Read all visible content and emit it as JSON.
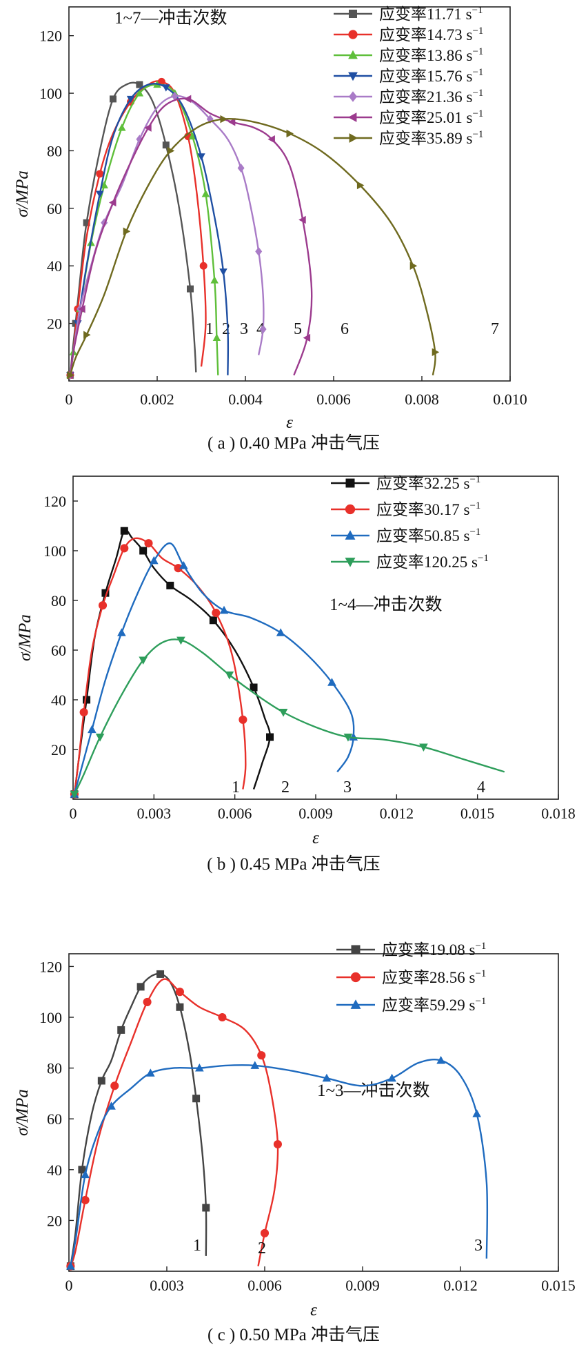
{
  "chart_data": [
    {
      "type": "line",
      "caption": "( a ) 0.40 MPa 冲击气压",
      "xlabel": "ε",
      "ylabel": "σ/MPa",
      "xlim": [
        0,
        0.01
      ],
      "ylim": [
        0,
        130
      ],
      "xticks": [
        "0",
        "0.002",
        "0.004",
        "0.006",
        "0.008",
        "0.010"
      ],
      "yticks": [
        "20",
        "40",
        "60",
        "80",
        "100",
        "120"
      ],
      "grid": false,
      "legend_position": "top-right",
      "note": "1~7—冲击次数",
      "series": [
        {
          "name": "应变率11.71 s",
          "label": "1",
          "color": "#555555",
          "marker": "square",
          "x": [
            3e-05,
            8e-05,
            0.00015,
            0.00025,
            0.0004,
            0.0007,
            0.001,
            0.0013,
            0.0016,
            0.0019,
            0.0022,
            0.0025,
            0.00275,
            0.00285,
            0.00288
          ],
          "y": [
            2,
            10,
            20,
            35,
            55,
            80,
            98,
            103,
            103,
            97,
            82,
            60,
            32,
            12,
            3
          ]
        },
        {
          "name": "应变率14.73 s",
          "label": "2",
          "color": "#e8302a",
          "marker": "circle",
          "x": [
            3e-05,
            0.0001,
            0.0002,
            0.0004,
            0.0007,
            0.001,
            0.0014,
            0.0018,
            0.0021,
            0.0024,
            0.0027,
            0.0029,
            0.00305,
            0.0031,
            0.003
          ],
          "y": [
            2,
            10,
            25,
            50,
            72,
            86,
            97,
            103,
            104,
            100,
            85,
            65,
            40,
            20,
            5
          ]
        },
        {
          "name": "应变率13.86 s",
          "label": "3",
          "color": "#5fbf3a",
          "marker": "triangle-up",
          "x": [
            3e-05,
            0.0001,
            0.00025,
            0.0005,
            0.0008,
            0.0012,
            0.0016,
            0.002,
            0.0024,
            0.0028,
            0.0031,
            0.0033,
            0.00335,
            0.00338
          ],
          "y": [
            2,
            10,
            25,
            48,
            68,
            88,
            100,
            103,
            100,
            85,
            65,
            35,
            15,
            2
          ]
        },
        {
          "name": "应变率15.76 s",
          "label": "4",
          "color": "#1f4fa3",
          "marker": "triangle-down",
          "x": [
            3e-05,
            0.0001,
            0.0002,
            0.0004,
            0.0007,
            0.001,
            0.0014,
            0.0018,
            0.0022,
            0.0026,
            0.003,
            0.0033,
            0.0035,
            0.0036,
            0.0036
          ],
          "y": [
            2,
            10,
            20,
            40,
            65,
            85,
            98,
            103,
            102,
            95,
            78,
            57,
            38,
            18,
            2
          ]
        },
        {
          "name": "应变率21.36 s",
          "label": "5",
          "color": "#a97bc7",
          "marker": "diamond",
          "x": [
            3e-05,
            0.0001,
            0.00025,
            0.0005,
            0.0008,
            0.0012,
            0.0016,
            0.002,
            0.0024,
            0.0028,
            0.0032,
            0.0036,
            0.0039,
            0.0041,
            0.0043,
            0.0044,
            0.0044,
            0.0043
          ],
          "y": [
            2,
            10,
            25,
            40,
            55,
            68,
            84,
            95,
            99,
            97,
            91,
            84,
            74,
            62,
            45,
            30,
            18,
            9
          ]
        },
        {
          "name": "应变率25.01 s",
          "label": "6",
          "color": "#9c3b8e",
          "marker": "triangle-left",
          "x": [
            3e-05,
            0.0001,
            0.0003,
            0.0006,
            0.001,
            0.0014,
            0.0018,
            0.0022,
            0.0027,
            0.0032,
            0.0037,
            0.0042,
            0.0046,
            0.005,
            0.0053,
            0.0055,
            0.0054,
            0.0051
          ],
          "y": [
            2,
            10,
            25,
            45,
            62,
            76,
            88,
            96,
            98,
            93,
            90,
            88,
            84,
            75,
            56,
            32,
            15,
            2
          ]
        },
        {
          "name": "应变率35.89 s",
          "label": "7",
          "color": "#6f6a1f",
          "marker": "triangle-right",
          "x": [
            3e-05,
            0.00015,
            0.0004,
            0.0008,
            0.0013,
            0.0018,
            0.0023,
            0.0029,
            0.0035,
            0.0042,
            0.005,
            0.0058,
            0.0066,
            0.0073,
            0.0078,
            0.0081,
            0.0083,
            0.00825
          ],
          "y": [
            2,
            8,
            16,
            30,
            52,
            68,
            80,
            88,
            91,
            90,
            86,
            79,
            68,
            55,
            40,
            25,
            10,
            2
          ]
        }
      ]
    },
    {
      "type": "line",
      "caption": "( b ) 0.45 MPa 冲击气压",
      "xlabel": "ε",
      "ylabel": "σ/MPa",
      "xlim": [
        0,
        0.018
      ],
      "ylim": [
        0,
        130
      ],
      "xticks": [
        "0",
        "0.003",
        "0.006",
        "0.009",
        "0.012",
        "0.015",
        "0.018"
      ],
      "yticks": [
        "20",
        "40",
        "60",
        "80",
        "100",
        "120"
      ],
      "grid": false,
      "legend_position": "top-right",
      "note": "1~4—冲击次数",
      "series": [
        {
          "name": "应变率32.25 s",
          "label": "1",
          "color": "#111111",
          "marker": "square",
          "x": [
            5e-05,
            0.0002,
            0.0005,
            0.0008,
            0.0012,
            0.0016,
            0.0019,
            0.0022,
            0.0026,
            0.003,
            0.0036,
            0.0044,
            0.0052,
            0.006,
            0.0067,
            0.0071,
            0.0073,
            0.007,
            0.0067
          ],
          "y": [
            2,
            15,
            40,
            65,
            83,
            97,
            108,
            105,
            100,
            93,
            86,
            80,
            72,
            60,
            45,
            33,
            25,
            14,
            4
          ]
        },
        {
          "name": "应变率30.17 s",
          "label": "2",
          "color": "#e8302a",
          "marker": "circle",
          "x": [
            5e-05,
            0.0002,
            0.0004,
            0.0007,
            0.0011,
            0.0015,
            0.0019,
            0.0023,
            0.0028,
            0.0033,
            0.0039,
            0.0046,
            0.0053,
            0.0059,
            0.0063,
            0.0064,
            0.0063
          ],
          "y": [
            2,
            15,
            35,
            60,
            78,
            90,
            101,
            105,
            103,
            97,
            93,
            86,
            75,
            58,
            32,
            14,
            4
          ]
        },
        {
          "name": "应变率50.85 s",
          "label": "3",
          "color": "#1f6bbf",
          "marker": "triangle-up",
          "x": [
            5e-05,
            0.0003,
            0.0007,
            0.0012,
            0.0018,
            0.0024,
            0.003,
            0.0036,
            0.0041,
            0.0048,
            0.0056,
            0.0066,
            0.0077,
            0.0087,
            0.0096,
            0.0103,
            0.0104,
            0.0102,
            0.0098
          ],
          "y": [
            2,
            12,
            28,
            48,
            67,
            83,
            96,
            103,
            94,
            83,
            76,
            73,
            67,
            58,
            47,
            35,
            25,
            17,
            11
          ]
        },
        {
          "name": "应变率120.25 s",
          "label": "4",
          "color": "#2e9e5b",
          "marker": "triangle-down",
          "x": [
            5e-05,
            0.0004,
            0.001,
            0.0018,
            0.0026,
            0.0033,
            0.004,
            0.0048,
            0.0058,
            0.0068,
            0.0078,
            0.009,
            0.0102,
            0.0115,
            0.013,
            0.0145,
            0.016
          ],
          "y": [
            2,
            10,
            25,
            42,
            56,
            63,
            64,
            59,
            50,
            42,
            35,
            29,
            25,
            24,
            21,
            16,
            11
          ]
        }
      ]
    },
    {
      "type": "line",
      "caption": "( c ) 0.50 MPa 冲击气压",
      "xlabel": "ε",
      "ylabel": "σ/MPa",
      "xlim": [
        0,
        0.015
      ],
      "ylim": [
        0,
        125
      ],
      "xticks": [
        "0",
        "0.003",
        "0.006",
        "0.009",
        "0.012",
        "0.015"
      ],
      "yticks": [
        "20",
        "40",
        "60",
        "80",
        "100",
        "120"
      ],
      "grid": false,
      "legend_position": "top-right",
      "note": "1~3—冲击次数",
      "series": [
        {
          "name": "应变率19.08 s",
          "label": "1",
          "color": "#444444",
          "marker": "square",
          "x": [
            5e-05,
            0.0002,
            0.0004,
            0.0007,
            0.001,
            0.0013,
            0.0016,
            0.0019,
            0.0022,
            0.0025,
            0.0028,
            0.0031,
            0.0034,
            0.0037,
            0.0039,
            0.0041,
            0.0042,
            0.0042
          ],
          "y": [
            2,
            15,
            40,
            62,
            75,
            83,
            95,
            104,
            112,
            116,
            117,
            114,
            104,
            86,
            68,
            45,
            25,
            6
          ]
        },
        {
          "name": "应变率28.56 s",
          "label": "2",
          "color": "#e8302a",
          "marker": "circle",
          "x": [
            5e-05,
            0.0002,
            0.0005,
            0.0009,
            0.0014,
            0.0019,
            0.0024,
            0.0029,
            0.0034,
            0.004,
            0.0047,
            0.0054,
            0.0059,
            0.0062,
            0.0064,
            0.0063,
            0.006,
            0.0058
          ],
          "y": [
            2,
            8,
            28,
            52,
            73,
            90,
            106,
            115,
            110,
            104,
            100,
            95,
            85,
            70,
            50,
            32,
            15,
            2
          ]
        },
        {
          "name": "应变率59.29 s",
          "label": "3",
          "color": "#1f6bbf",
          "marker": "triangle-up",
          "x": [
            5e-05,
            0.0002,
            0.0005,
            0.0009,
            0.0013,
            0.0019,
            0.0025,
            0.0032,
            0.004,
            0.0048,
            0.0057,
            0.0068,
            0.0079,
            0.009,
            0.0099,
            0.0107,
            0.0114,
            0.012,
            0.0125,
            0.0128,
            0.0128
          ],
          "y": [
            2,
            12,
            38,
            55,
            65,
            72,
            78,
            80,
            80,
            81,
            81,
            79,
            76,
            73,
            76,
            82,
            83,
            77,
            62,
            35,
            5
          ]
        }
      ]
    }
  ]
}
